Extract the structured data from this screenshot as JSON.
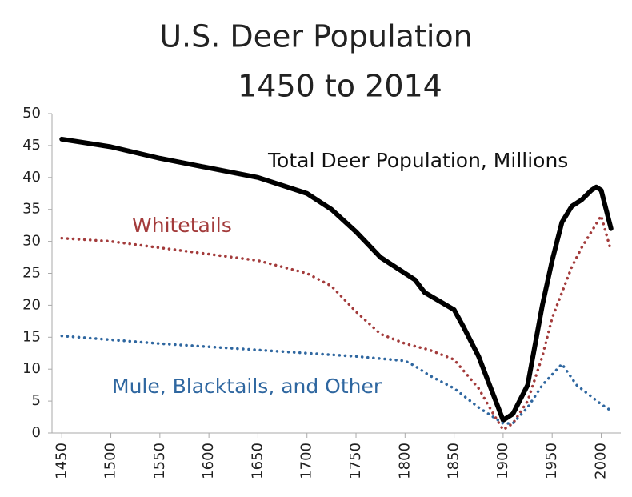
{
  "chart_data": {
    "type": "line",
    "title": "U.S. Deer Population",
    "subtitle": "1450 to 2014",
    "xlim": [
      1440,
      2020
    ],
    "xticks": [
      1450,
      1500,
      1550,
      1600,
      1650,
      1700,
      1750,
      1800,
      1850,
      1900,
      1950,
      2000
    ],
    "ylim": [
      0,
      50
    ],
    "yticks": [
      0,
      5,
      10,
      15,
      20,
      25,
      30,
      35,
      40,
      45,
      50
    ],
    "grid": false,
    "series": [
      {
        "name": "Total Deer Population, Millions",
        "color": "#000000",
        "style": "solid",
        "x": [
          1450,
          1500,
          1550,
          1600,
          1650,
          1700,
          1725,
          1750,
          1775,
          1800,
          1810,
          1820,
          1850,
          1860,
          1875,
          1890,
          1900,
          1910,
          1925,
          1940,
          1950,
          1960,
          1970,
          1980,
          1990,
          1995,
          2000,
          2010
        ],
        "values": [
          46,
          44.8,
          43,
          41.5,
          40,
          37.5,
          35,
          31.5,
          27.5,
          25,
          24,
          22,
          19.3,
          16.5,
          12,
          6,
          2,
          3,
          7.5,
          20,
          27,
          33,
          35.5,
          36.5,
          38,
          38.5,
          38,
          32
        ]
      },
      {
        "name": "Whitetails",
        "color": "#a33b3b",
        "style": "dotted",
        "x": [
          1450,
          1500,
          1550,
          1600,
          1650,
          1700,
          1725,
          1750,
          1775,
          1800,
          1825,
          1850,
          1875,
          1890,
          1900,
          1910,
          1925,
          1940,
          1950,
          1960,
          1970,
          1980,
          1990,
          2000,
          2010
        ],
        "values": [
          30.5,
          30,
          29,
          28,
          27,
          25,
          23,
          19,
          15.5,
          14,
          13,
          11.5,
          7,
          3,
          0.5,
          1.5,
          5,
          12,
          18,
          22,
          26,
          29,
          31.5,
          34,
          28.5
        ]
      },
      {
        "name": "Mule, Blacktails, and Other",
        "color": "#2f67a0",
        "style": "dotted",
        "x": [
          1450,
          1550,
          1650,
          1700,
          1750,
          1800,
          1810,
          1825,
          1850,
          1875,
          1900,
          1910,
          1925,
          1940,
          1960,
          1975,
          2000,
          2010
        ],
        "values": [
          15.2,
          14,
          13,
          12.5,
          12,
          11.3,
          10.5,
          9,
          7,
          4,
          1.5,
          1.5,
          4,
          7.5,
          10.8,
          7.5,
          4.5,
          3.5
        ]
      }
    ]
  }
}
